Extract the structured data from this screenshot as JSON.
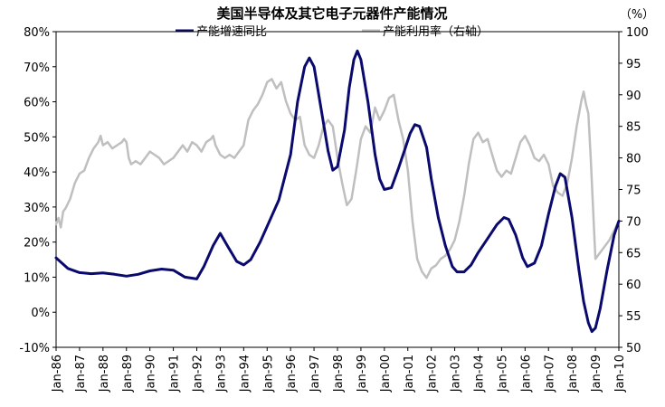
{
  "chart_data": {
    "type": "line",
    "title": "美国半导体及其它电子元器件产能情况",
    "unit_right": "（%）",
    "x_tick_labels": [
      "Jan-86",
      "Jan-87",
      "Jan-88",
      "Jan-89",
      "Jan-90",
      "Jan-91",
      "Jan-92",
      "Jan-93",
      "Jan-94",
      "Jan-95",
      "Jan-96",
      "Jan-97",
      "Jan-98",
      "Jan-99",
      "Jan-00",
      "Jan-01",
      "Jan-02",
      "Jan-03",
      "Jan-04",
      "Jan-05",
      "Jan-06",
      "Jan-07",
      "Jan-08",
      "Jan-09",
      "Jan-10"
    ],
    "y_left": {
      "min": -10,
      "max": 80,
      "step": 10,
      "labels": [
        "-10%",
        "0%",
        "10%",
        "20%",
        "30%",
        "40%",
        "50%",
        "60%",
        "70%",
        "80%"
      ]
    },
    "y_right": {
      "min": 50,
      "max": 100,
      "step": 5,
      "labels": [
        "50",
        "55",
        "60",
        "65",
        "70",
        "75",
        "80",
        "85",
        "90",
        "95",
        "100"
      ]
    },
    "x_range": [
      1986.0,
      2010.0
    ],
    "series": [
      {
        "name": "产能增速同比",
        "axis": "left",
        "color": "#0a0a6e",
        "points": [
          [
            1986.0,
            15.5
          ],
          [
            1986.5,
            12.5
          ],
          [
            1987.0,
            11.3
          ],
          [
            1987.5,
            11.0
          ],
          [
            1988.0,
            11.2
          ],
          [
            1988.5,
            10.8
          ],
          [
            1989.0,
            10.3
          ],
          [
            1989.5,
            10.8
          ],
          [
            1990.0,
            11.8
          ],
          [
            1990.5,
            12.3
          ],
          [
            1991.0,
            12.0
          ],
          [
            1991.5,
            10.0
          ],
          [
            1992.0,
            9.5
          ],
          [
            1992.3,
            13.0
          ],
          [
            1992.7,
            19.0
          ],
          [
            1993.0,
            22.5
          ],
          [
            1993.3,
            19.0
          ],
          [
            1993.7,
            14.5
          ],
          [
            1994.0,
            13.5
          ],
          [
            1994.3,
            15.0
          ],
          [
            1994.7,
            20.0
          ],
          [
            1995.0,
            24.5
          ],
          [
            1995.5,
            32.0
          ],
          [
            1996.0,
            45.0
          ],
          [
            1996.3,
            60.0
          ],
          [
            1996.6,
            70.0
          ],
          [
            1996.8,
            72.5
          ],
          [
            1997.0,
            70.0
          ],
          [
            1997.3,
            58.0
          ],
          [
            1997.6,
            46.0
          ],
          [
            1997.8,
            40.5
          ],
          [
            1998.0,
            41.5
          ],
          [
            1998.3,
            52.0
          ],
          [
            1998.5,
            64.0
          ],
          [
            1998.7,
            72.0
          ],
          [
            1998.85,
            74.5
          ],
          [
            1999.0,
            72.0
          ],
          [
            1999.3,
            60.0
          ],
          [
            1999.6,
            45.0
          ],
          [
            1999.8,
            38.0
          ],
          [
            2000.0,
            35.0
          ],
          [
            2000.3,
            35.5
          ],
          [
            2000.6,
            41.0
          ],
          [
            2000.9,
            47.0
          ],
          [
            2001.1,
            51.0
          ],
          [
            2001.3,
            53.5
          ],
          [
            2001.5,
            53.0
          ],
          [
            2001.8,
            47.0
          ],
          [
            2002.0,
            38.0
          ],
          [
            2002.3,
            27.0
          ],
          [
            2002.6,
            19.0
          ],
          [
            2002.9,
            13.0
          ],
          [
            2003.1,
            11.5
          ],
          [
            2003.4,
            11.5
          ],
          [
            2003.7,
            13.5
          ],
          [
            2004.0,
            17.0
          ],
          [
            2004.4,
            21.0
          ],
          [
            2004.8,
            25.0
          ],
          [
            2005.1,
            27.0
          ],
          [
            2005.3,
            26.5
          ],
          [
            2005.6,
            22.0
          ],
          [
            2005.9,
            15.5
          ],
          [
            2006.1,
            13.0
          ],
          [
            2006.4,
            14.0
          ],
          [
            2006.7,
            19.0
          ],
          [
            2007.0,
            28.0
          ],
          [
            2007.3,
            36.0
          ],
          [
            2007.5,
            39.5
          ],
          [
            2007.7,
            38.5
          ],
          [
            2008.0,
            27.0
          ],
          [
            2008.3,
            12.0
          ],
          [
            2008.5,
            3.0
          ],
          [
            2008.7,
            -3.0
          ],
          [
            2008.85,
            -5.5
          ],
          [
            2009.0,
            -4.5
          ],
          [
            2009.2,
            1.0
          ],
          [
            2009.5,
            12.0
          ],
          [
            2009.8,
            22.0
          ],
          [
            2010.0,
            26.0
          ]
        ]
      },
      {
        "name": "产能利用率（右轴）",
        "axis": "right",
        "color": "#bfbfbf",
        "points": [
          [
            1986.0,
            69.5
          ],
          [
            1986.1,
            70.5
          ],
          [
            1986.2,
            69.0
          ],
          [
            1986.3,
            71.5
          ],
          [
            1986.4,
            72.0
          ],
          [
            1986.6,
            73.5
          ],
          [
            1986.8,
            76.0
          ],
          [
            1987.0,
            77.5
          ],
          [
            1987.2,
            78.0
          ],
          [
            1987.4,
            80.0
          ],
          [
            1987.6,
            81.5
          ],
          [
            1987.8,
            82.5
          ],
          [
            1987.9,
            83.5
          ],
          [
            1988.0,
            82.0
          ],
          [
            1988.2,
            82.5
          ],
          [
            1988.4,
            81.5
          ],
          [
            1988.6,
            82.0
          ],
          [
            1988.8,
            82.5
          ],
          [
            1988.9,
            83.0
          ],
          [
            1989.0,
            82.5
          ],
          [
            1989.1,
            80.0
          ],
          [
            1989.2,
            79.0
          ],
          [
            1989.4,
            79.5
          ],
          [
            1989.6,
            79.0
          ],
          [
            1989.8,
            80.0
          ],
          [
            1990.0,
            81.0
          ],
          [
            1990.2,
            80.5
          ],
          [
            1990.4,
            80.0
          ],
          [
            1990.6,
            79.0
          ],
          [
            1990.8,
            79.5
          ],
          [
            1991.0,
            80.0
          ],
          [
            1991.2,
            81.0
          ],
          [
            1991.4,
            82.0
          ],
          [
            1991.6,
            81.0
          ],
          [
            1991.8,
            82.5
          ],
          [
            1992.0,
            82.0
          ],
          [
            1992.2,
            81.0
          ],
          [
            1992.4,
            82.5
          ],
          [
            1992.6,
            83.0
          ],
          [
            1992.7,
            83.5
          ],
          [
            1992.8,
            82.0
          ],
          [
            1993.0,
            80.5
          ],
          [
            1993.2,
            80.0
          ],
          [
            1993.4,
            80.5
          ],
          [
            1993.6,
            80.0
          ],
          [
            1993.8,
            81.0
          ],
          [
            1994.0,
            82.0
          ],
          [
            1994.2,
            86.0
          ],
          [
            1994.4,
            87.5
          ],
          [
            1994.6,
            88.5
          ],
          [
            1994.8,
            90.0
          ],
          [
            1995.0,
            92.0
          ],
          [
            1995.2,
            92.5
          ],
          [
            1995.4,
            91.0
          ],
          [
            1995.6,
            92.0
          ],
          [
            1995.8,
            89.0
          ],
          [
            1996.0,
            87.0
          ],
          [
            1996.2,
            86.0
          ],
          [
            1996.4,
            86.5
          ],
          [
            1996.6,
            82.0
          ],
          [
            1996.8,
            80.5
          ],
          [
            1997.0,
            80.0
          ],
          [
            1997.2,
            82.0
          ],
          [
            1997.4,
            85.0
          ],
          [
            1997.6,
            86.0
          ],
          [
            1997.8,
            85.0
          ],
          [
            1998.0,
            80.0
          ],
          [
            1998.2,
            76.0
          ],
          [
            1998.4,
            72.5
          ],
          [
            1998.6,
            73.5
          ],
          [
            1998.8,
            78.0
          ],
          [
            1999.0,
            83.0
          ],
          [
            1999.2,
            85.0
          ],
          [
            1999.4,
            84.0
          ],
          [
            1999.6,
            88.0
          ],
          [
            1999.8,
            86.0
          ],
          [
            2000.0,
            87.5
          ],
          [
            2000.2,
            89.5
          ],
          [
            2000.4,
            90.0
          ],
          [
            2000.6,
            86.0
          ],
          [
            2000.8,
            83.0
          ],
          [
            2001.0,
            78.0
          ],
          [
            2001.2,
            70.0
          ],
          [
            2001.4,
            64.0
          ],
          [
            2001.6,
            62.0
          ],
          [
            2001.8,
            61.0
          ],
          [
            2002.0,
            62.5
          ],
          [
            2002.2,
            63.0
          ],
          [
            2002.4,
            64.0
          ],
          [
            2002.6,
            64.5
          ],
          [
            2002.8,
            65.5
          ],
          [
            2003.0,
            67.0
          ],
          [
            2003.2,
            70.0
          ],
          [
            2003.4,
            74.0
          ],
          [
            2003.6,
            79.0
          ],
          [
            2003.8,
            83.0
          ],
          [
            2004.0,
            84.0
          ],
          [
            2004.2,
            82.5
          ],
          [
            2004.4,
            83.0
          ],
          [
            2004.6,
            80.5
          ],
          [
            2004.8,
            78.0
          ],
          [
            2005.0,
            77.0
          ],
          [
            2005.2,
            78.0
          ],
          [
            2005.4,
            77.5
          ],
          [
            2005.6,
            80.0
          ],
          [
            2005.8,
            82.5
          ],
          [
            2006.0,
            83.5
          ],
          [
            2006.2,
            82.0
          ],
          [
            2006.4,
            80.0
          ],
          [
            2006.6,
            79.5
          ],
          [
            2006.8,
            80.5
          ],
          [
            2007.0,
            79.0
          ],
          [
            2007.2,
            75.5
          ],
          [
            2007.4,
            74.5
          ],
          [
            2007.6,
            74.0
          ],
          [
            2007.8,
            76.0
          ],
          [
            2008.0,
            80.0
          ],
          [
            2008.2,
            85.0
          ],
          [
            2008.4,
            89.0
          ],
          [
            2008.5,
            90.5
          ],
          [
            2008.6,
            88.5
          ],
          [
            2008.7,
            87.0
          ],
          [
            2008.8,
            80.0
          ],
          [
            2008.9,
            72.0
          ],
          [
            2009.0,
            64.0
          ],
          [
            2009.2,
            65.0
          ],
          [
            2009.4,
            66.0
          ],
          [
            2009.6,
            67.0
          ],
          [
            2009.8,
            68.5
          ],
          [
            2010.0,
            70.0
          ]
        ]
      }
    ],
    "grid": false,
    "legend_position": "top-center"
  }
}
